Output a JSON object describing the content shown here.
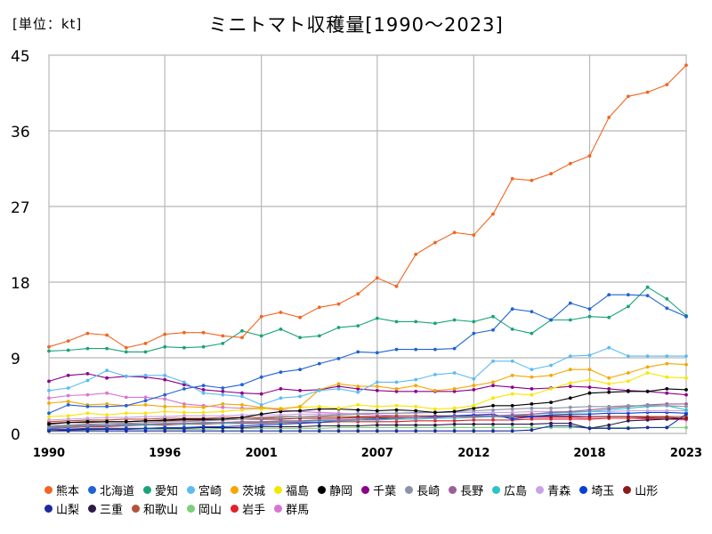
{
  "chart_data": {
    "type": "line",
    "title": "ミニトマト収穫量[1990～2023]",
    "unit_label": "[単位：kt]",
    "ylim": [
      0,
      45
    ],
    "y_ticks": [
      "0",
      "9",
      "18",
      "27",
      "36",
      "45"
    ],
    "x_ticks": [
      "1990",
      "1996",
      "2001",
      "2007",
      "2012",
      "2018",
      "2023"
    ],
    "grid": true,
    "legend_position": "bottom",
    "x": [
      1990,
      1991,
      1992,
      1993,
      1994,
      1995,
      1996,
      1997,
      1998,
      1999,
      2000,
      2001,
      2002,
      2003,
      2004,
      2005,
      2006,
      2007,
      2008,
      2009,
      2010,
      2011,
      2012,
      2013,
      2014,
      2015,
      2016,
      2017,
      2018,
      2019,
      2020,
      2021,
      2022,
      2023
    ],
    "series": [
      {
        "name": "熊本",
        "color": "#f26522",
        "values": [
          10.3,
          11.0,
          11.9,
          11.7,
          10.2,
          10.7,
          11.8,
          12.0,
          12.0,
          11.6,
          11.4,
          13.9,
          14.4,
          13.8,
          15.0,
          15.4,
          16.6,
          18.5,
          17.5,
          21.3,
          22.7,
          23.9,
          23.6,
          26.1,
          30.3,
          30.1,
          30.9,
          32.1,
          33.0,
          37.6,
          40.1,
          40.6,
          41.5,
          43.8
        ]
      },
      {
        "name": "北海道",
        "color": "#1f62d6",
        "values": [
          2.4,
          3.4,
          3.2,
          3.2,
          3.3,
          3.9,
          4.6,
          5.3,
          5.7,
          5.4,
          5.8,
          6.7,
          7.3,
          7.6,
          8.3,
          8.9,
          9.7,
          9.6,
          10.0,
          10.0,
          10.0,
          10.1,
          11.9,
          12.3,
          14.8,
          14.5,
          13.5,
          15.5,
          14.8,
          16.5,
          16.5,
          16.4,
          14.9,
          13.9
        ]
      },
      {
        "name": "愛知",
        "color": "#1aa37a",
        "values": [
          9.8,
          9.9,
          10.1,
          10.1,
          9.7,
          9.7,
          10.3,
          10.2,
          10.3,
          10.7,
          12.2,
          11.6,
          12.4,
          11.4,
          11.6,
          12.6,
          12.8,
          13.7,
          13.3,
          13.3,
          13.1,
          13.5,
          13.3,
          13.9,
          12.4,
          11.9,
          13.5,
          13.5,
          13.9,
          13.8,
          15.1,
          17.4,
          16.0,
          14.0
        ]
      },
      {
        "name": "宮崎",
        "color": "#5bbcf0",
        "values": [
          5.1,
          5.4,
          6.3,
          7.5,
          6.8,
          6.9,
          6.9,
          6.1,
          4.8,
          4.6,
          4.4,
          3.4,
          4.2,
          4.4,
          5.1,
          5.3,
          4.9,
          6.1,
          6.1,
          6.4,
          7.0,
          7.2,
          6.5,
          8.6,
          8.6,
          7.6,
          8.1,
          9.2,
          9.3,
          10.2,
          9.2,
          9.2,
          9.2,
          9.2
        ]
      },
      {
        "name": "茨城",
        "color": "#f5a700",
        "values": [
          3.6,
          3.8,
          3.4,
          3.5,
          3.3,
          3.4,
          3.2,
          3.2,
          3.1,
          3.5,
          3.4,
          3.1,
          2.9,
          3.2,
          5.2,
          5.9,
          5.6,
          5.6,
          5.3,
          5.7,
          5.1,
          5.3,
          5.7,
          6.1,
          6.9,
          6.7,
          6.9,
          7.6,
          7.6,
          6.6,
          7.2,
          7.9,
          8.3,
          8.2
        ]
      },
      {
        "name": "福島",
        "color": "#f7e600",
        "values": [
          2.0,
          2.1,
          2.4,
          2.2,
          2.4,
          2.4,
          2.6,
          2.5,
          2.5,
          2.6,
          2.8,
          2.9,
          3.0,
          3.1,
          3.2,
          3.0,
          3.4,
          3.2,
          3.3,
          3.2,
          2.9,
          3.0,
          3.3,
          4.2,
          4.7,
          4.6,
          5.3,
          6.0,
          6.4,
          5.9,
          6.2,
          7.2,
          6.7,
          6.6
        ]
      },
      {
        "name": "静岡",
        "color": "#000000",
        "values": [
          1.1,
          1.3,
          1.4,
          1.4,
          1.4,
          1.5,
          1.6,
          1.7,
          1.7,
          1.7,
          1.9,
          2.3,
          2.6,
          2.7,
          2.9,
          2.9,
          2.8,
          2.7,
          2.8,
          2.7,
          2.5,
          2.6,
          3.0,
          3.3,
          3.3,
          3.5,
          3.7,
          4.2,
          4.8,
          4.9,
          5.0,
          5.0,
          5.3,
          5.2
        ]
      },
      {
        "name": "千葉",
        "color": "#8b008b",
        "values": [
          6.2,
          6.9,
          7.1,
          6.6,
          6.8,
          6.7,
          6.4,
          5.8,
          5.2,
          5.0,
          4.8,
          4.7,
          5.3,
          5.1,
          5.2,
          5.6,
          5.3,
          5.1,
          5.0,
          5.0,
          5.0,
          5.0,
          5.2,
          5.7,
          5.5,
          5.3,
          5.4,
          5.6,
          5.5,
          5.3,
          5.1,
          5.0,
          4.8,
          4.6
        ]
      },
      {
        "name": "長崎",
        "color": "#8c93a6",
        "values": [
          0.9,
          1.0,
          1.1,
          1.2,
          1.2,
          1.3,
          1.4,
          1.4,
          1.5,
          1.6,
          1.7,
          1.8,
          1.9,
          2.0,
          2.1,
          2.2,
          2.3,
          2.4,
          2.4,
          2.5,
          2.5,
          2.6,
          2.7,
          2.8,
          2.9,
          3.0,
          3.0,
          3.1,
          3.2,
          3.2,
          3.3,
          3.3,
          3.3,
          3.2
        ]
      },
      {
        "name": "長野",
        "color": "#9c5f9a",
        "values": [
          0.8,
          0.9,
          1.0,
          1.0,
          1.1,
          1.1,
          1.2,
          1.2,
          1.3,
          1.3,
          1.4,
          1.4,
          1.5,
          1.5,
          1.6,
          1.6,
          1.7,
          1.8,
          1.8,
          1.9,
          1.9,
          2.0,
          2.0,
          2.1,
          2.2,
          2.3,
          2.5,
          2.6,
          2.8,
          3.0,
          3.2,
          3.4,
          3.5,
          3.5
        ]
      },
      {
        "name": "広島",
        "color": "#2ec4c4",
        "values": [
          0.7,
          0.8,
          0.9,
          0.9,
          1.0,
          1.0,
          1.1,
          1.1,
          1.2,
          1.2,
          1.3,
          1.3,
          1.4,
          1.4,
          1.5,
          1.5,
          1.6,
          1.6,
          1.7,
          1.7,
          1.8,
          1.8,
          1.9,
          2.0,
          2.1,
          2.3,
          2.4,
          2.5,
          2.6,
          2.8,
          3.0,
          3.2,
          3.3,
          2.8
        ]
      },
      {
        "name": "青森",
        "color": "#c9a3e8",
        "values": [
          1.6,
          1.7,
          1.8,
          1.9,
          1.9,
          2.0,
          2.0,
          2.1,
          2.1,
          2.1,
          2.2,
          2.2,
          2.2,
          2.3,
          2.3,
          2.3,
          2.4,
          2.4,
          2.4,
          2.4,
          2.5,
          2.5,
          2.5,
          2.5,
          2.5,
          2.6,
          2.6,
          2.6,
          2.6,
          2.6,
          2.7,
          2.7,
          2.7,
          2.7
        ]
      },
      {
        "name": "埼玉",
        "color": "#0a3fd4",
        "values": [
          0.5,
          0.5,
          0.6,
          0.6,
          0.6,
          0.6,
          0.7,
          0.7,
          0.8,
          0.8,
          0.9,
          1.0,
          1.1,
          1.2,
          1.3,
          1.5,
          1.6,
          1.7,
          1.8,
          1.9,
          2.0,
          2.1,
          2.2,
          2.3,
          1.7,
          2.0,
          2.2,
          2.3,
          2.3,
          2.4,
          2.4,
          2.5,
          2.5,
          2.4
        ]
      },
      {
        "name": "山形",
        "color": "#8b1a1a",
        "values": [
          1.2,
          1.3,
          1.3,
          1.4,
          1.4,
          1.5,
          1.5,
          1.6,
          1.6,
          1.6,
          1.7,
          1.7,
          1.7,
          1.8,
          1.8,
          1.8,
          1.9,
          1.9,
          1.9,
          1.9,
          2.0,
          2.0,
          2.0,
          2.0,
          2.0,
          2.0,
          2.0,
          2.0,
          2.0,
          2.0,
          2.0,
          1.9,
          1.9,
          1.8
        ]
      },
      {
        "name": "山梨",
        "color": "#1a2a9e",
        "values": [
          0.3,
          0.3,
          0.3,
          0.3,
          0.3,
          0.3,
          0.3,
          0.3,
          0.3,
          0.3,
          0.3,
          0.3,
          0.3,
          0.3,
          0.3,
          0.3,
          0.3,
          0.3,
          0.3,
          0.3,
          0.3,
          0.3,
          0.3,
          0.3,
          0.3,
          0.4,
          0.9,
          0.9,
          0.6,
          0.6,
          0.6,
          0.7,
          0.7,
          2.3
        ]
      },
      {
        "name": "三重",
        "color": "#2e1a47",
        "values": [
          0.3,
          0.4,
          0.5,
          0.5,
          0.5,
          0.6,
          0.6,
          0.6,
          0.7,
          0.7,
          0.7,
          0.8,
          0.8,
          0.8,
          0.9,
          0.9,
          0.9,
          1.0,
          1.0,
          1.0,
          1.0,
          1.1,
          1.1,
          1.1,
          1.1,
          1.1,
          1.2,
          1.2,
          0.6,
          1.0,
          1.5,
          1.6,
          1.7,
          1.8
        ]
      },
      {
        "name": "和歌山",
        "color": "#b5523b",
        "values": [
          1.4,
          1.5,
          1.6,
          1.6,
          1.7,
          1.7,
          1.8,
          1.8,
          1.8,
          1.9,
          1.9,
          1.9,
          2.0,
          2.0,
          2.0,
          2.0,
          2.0,
          2.0,
          2.1,
          2.1,
          2.1,
          2.1,
          2.1,
          2.1,
          2.1,
          2.1,
          2.1,
          2.1,
          2.0,
          2.0,
          2.0,
          2.0,
          2.0,
          2.0
        ]
      },
      {
        "name": "岡山",
        "color": "#7ccf7c",
        "values": [
          0.4,
          0.4,
          0.4,
          0.5,
          0.5,
          0.5,
          0.5,
          0.5,
          0.5,
          0.6,
          0.6,
          0.6,
          0.6,
          0.6,
          0.6,
          0.7,
          0.7,
          0.7,
          0.7,
          0.7,
          0.7,
          0.7,
          0.7,
          0.7,
          0.7,
          0.7,
          0.7,
          0.7,
          0.7,
          0.7,
          0.7,
          0.7,
          0.7,
          0.7
        ]
      },
      {
        "name": "岩手",
        "color": "#e0202a",
        "values": [
          0.6,
          0.7,
          0.8,
          0.8,
          0.9,
          1.0,
          1.0,
          1.1,
          1.1,
          1.2,
          1.2,
          1.2,
          1.3,
          1.3,
          1.3,
          1.4,
          1.4,
          1.4,
          1.4,
          1.5,
          1.5,
          1.5,
          1.6,
          1.6,
          1.6,
          1.7,
          1.7,
          1.7,
          1.7,
          1.8,
          1.8,
          1.8,
          1.7,
          1.7
        ]
      },
      {
        "name": "群馬",
        "color": "#d974d4",
        "values": [
          4.2,
          4.5,
          4.6,
          4.8,
          4.3,
          4.3,
          4.1,
          3.5,
          3.3,
          3.1,
          3.0,
          3.0,
          2.8,
          2.6,
          2.5,
          2.4,
          2.3,
          2.2,
          2.1,
          2.1,
          2.0,
          2.0,
          2.0,
          2.0,
          1.9,
          1.9,
          1.9,
          1.9,
          1.8,
          1.8,
          1.8,
          1.7,
          1.7,
          1.6
        ]
      }
    ]
  }
}
